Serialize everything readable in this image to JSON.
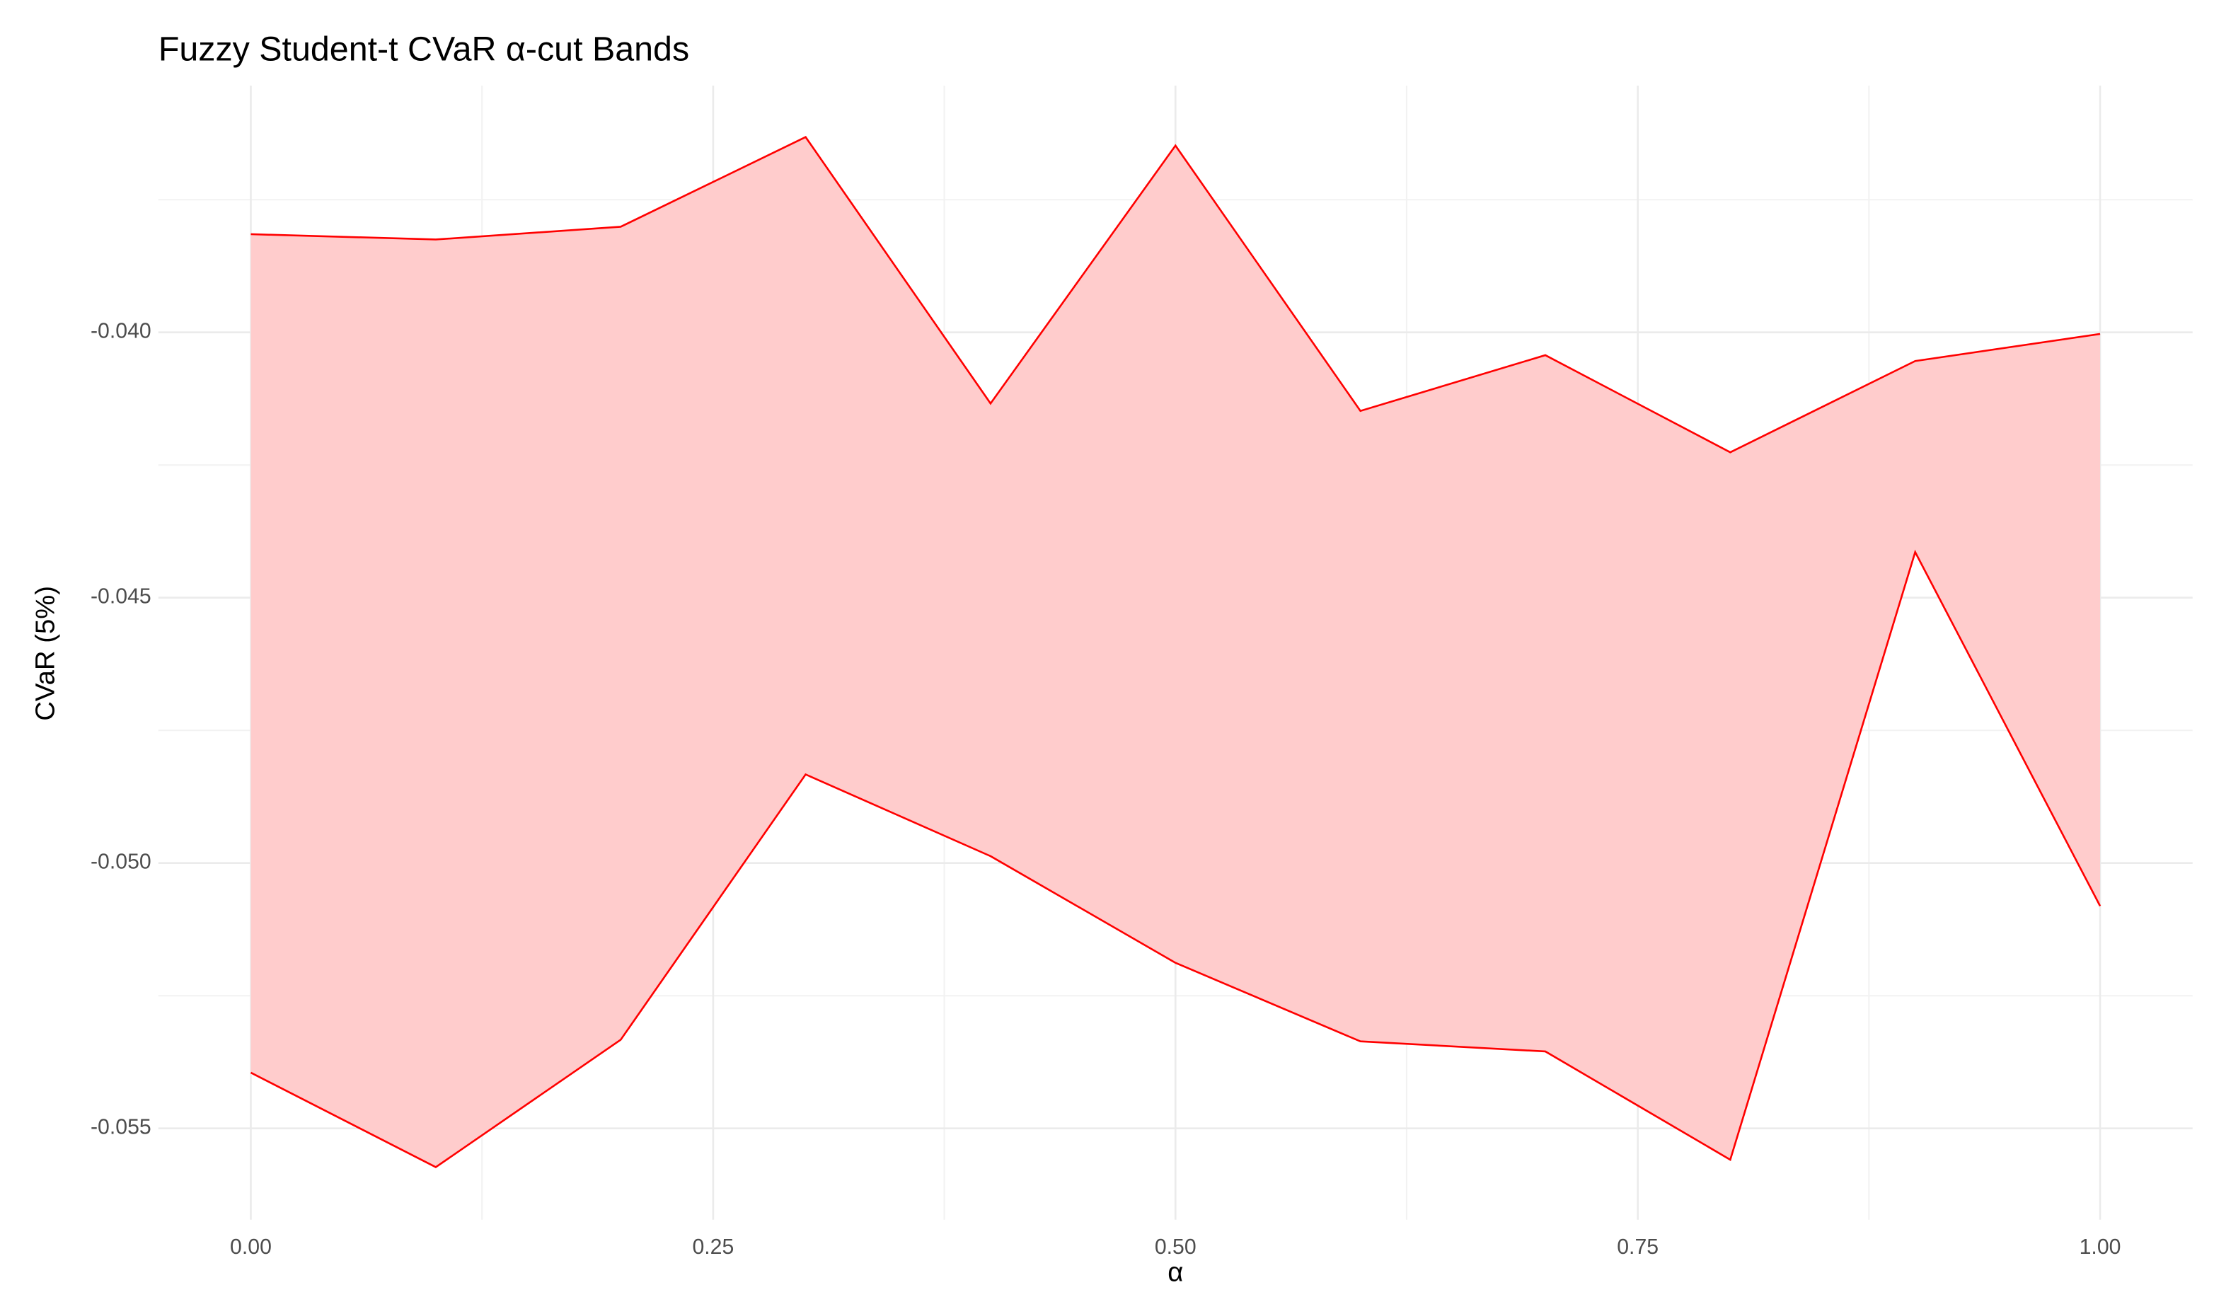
{
  "chart_data": {
    "type": "ribbon",
    "title": "Fuzzy Student-t CVaR α-cut Bands",
    "xlabel": "α",
    "ylabel": "CVaR (5%)",
    "x": [
      0.0,
      0.1,
      0.2,
      0.3,
      0.4,
      0.5,
      0.6,
      0.7,
      0.8,
      0.9,
      1.0
    ],
    "ymin": [
      -0.05395,
      -0.05573,
      -0.05333,
      -0.04833,
      -0.04987,
      -0.05188,
      -0.05336,
      -0.05355,
      -0.05559,
      -0.04414,
      -0.05081
    ],
    "ymax": [
      -0.03815,
      -0.03825,
      -0.03801,
      -0.03632,
      -0.04134,
      -0.03648,
      -0.04148,
      -0.04043,
      -0.04226,
      -0.04054,
      -0.04003
    ],
    "color": "#ff0000",
    "fill": "#ffcccc",
    "xlim": [
      -0.05,
      1.05
    ],
    "xticks": [
      {
        "value": 0,
        "label": "0.00"
      },
      {
        "value": 0.25,
        "label": "0.25"
      },
      {
        "value": 0.5,
        "label": "0.50"
      },
      {
        "value": 0.75,
        "label": "0.75"
      },
      {
        "value": 1,
        "label": "1.00"
      }
    ],
    "ylim": [
      -0.05672,
      -0.03535
    ],
    "yticks": [
      -0.055,
      {
        "value": -0.05,
        "label": "-0.050"
      },
      -0.045,
      {
        "value": -0.04,
        "label": "-0.040"
      }
    ],
    "grid": true
  }
}
